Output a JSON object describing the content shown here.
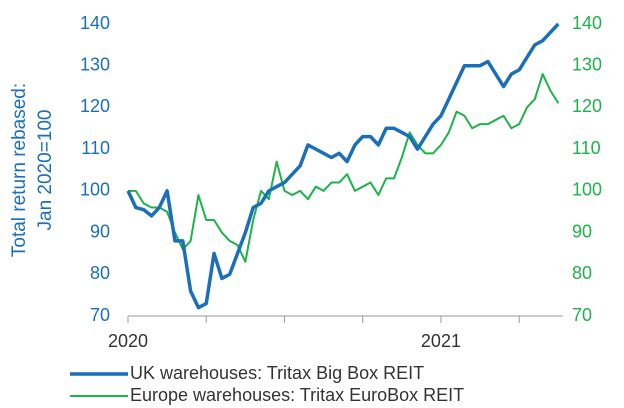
{
  "chart_data": {
    "type": "line",
    "ylabel": [
      "Total return rebased:",
      "Jan 2020=100"
    ],
    "x": [
      2020,
      2020.025,
      2020.05,
      2020.075,
      2020.1,
      2020.125,
      2020.15,
      2020.175,
      2020.2,
      2020.225,
      2020.25,
      2020.275,
      2020.3,
      2020.325,
      2020.35,
      2020.375,
      2020.4,
      2020.425,
      2020.45,
      2020.475,
      2020.5,
      2020.525,
      2020.55,
      2020.575,
      2020.6,
      2020.625,
      2020.65,
      2020.675,
      2020.7,
      2020.725,
      2020.75,
      2020.775,
      2020.8,
      2020.825,
      2020.85,
      2020.875,
      2020.9,
      2020.925,
      2020.95,
      2020.975,
      2021,
      2021.025,
      2021.05,
      2021.075,
      2021.1,
      2021.125,
      2021.15,
      2021.175,
      2021.2,
      2021.225,
      2021.25,
      2021.275,
      2021.3,
      2021.325,
      2021.35,
      2021.375
    ],
    "series": [
      {
        "name": "UK warehouses: Tritax Big Box REIT",
        "color": "#1a6fb8",
        "width": 3.5,
        "values": [
          100,
          96,
          95.5,
          94,
          96,
          100,
          88,
          88,
          76,
          72,
          73,
          85,
          79,
          80,
          85,
          90,
          96,
          97,
          100,
          101,
          102,
          104,
          106,
          111,
          110,
          109,
          108,
          109,
          107,
          111,
          113,
          113,
          111,
          115,
          115,
          114,
          113,
          110,
          113,
          116,
          118,
          122,
          126,
          130,
          130,
          130,
          131,
          128,
          125,
          128,
          129,
          132,
          135,
          136,
          138,
          140
        ]
      },
      {
        "name": "Europe warehouses: Tritax EuroBox REIT",
        "color": "#1db34a",
        "width": 2,
        "axis": "y2",
        "values": [
          100,
          100,
          97,
          96,
          96,
          95,
          90,
          86,
          88,
          99,
          93,
          93,
          90,
          88,
          87,
          83,
          93,
          100,
          98,
          107,
          100,
          99,
          100,
          98,
          101,
          100,
          102,
          102,
          104,
          100,
          101,
          102,
          99,
          103,
          103,
          108,
          114,
          111,
          109,
          109,
          111,
          114,
          119,
          118,
          115,
          116,
          116,
          117,
          118,
          115,
          116,
          120,
          122,
          128,
          124,
          121
        ]
      }
    ],
    "xlim": [
      2020,
      2021.39
    ],
    "xticks": [
      2020,
      2021
    ],
    "xminorticks": [
      2020.25,
      2020.5,
      2020.75,
      2021.25
    ],
    "ylim": [
      70,
      140
    ],
    "yticks": [
      70,
      80,
      90,
      100,
      110,
      120,
      130,
      140
    ],
    "y2lim": [
      70,
      140
    ],
    "y2ticks": [
      70,
      80,
      90,
      100,
      110,
      120,
      130,
      140
    ],
    "axis_color": "#1a6fb8",
    "axis2_color": "#1db34a"
  }
}
